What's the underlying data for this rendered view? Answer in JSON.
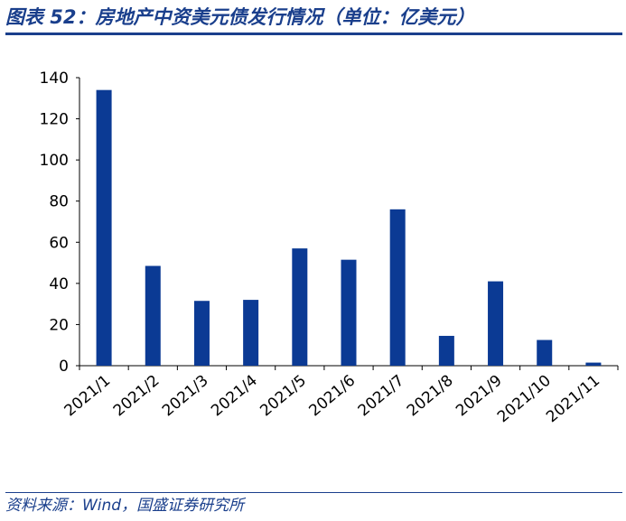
{
  "figure": {
    "title": "图表 52：房地产中资美元债发行情况（单位：亿美元）",
    "source": "资料来源：Wind，国盛证券研究所"
  },
  "chart_data": {
    "type": "bar",
    "categories": [
      "2021/1",
      "2021/2",
      "2021/3",
      "2021/4",
      "2021/5",
      "2021/6",
      "2021/7",
      "2021/8",
      "2021/9",
      "2021/10",
      "2021/11"
    ],
    "values": [
      134,
      48.5,
      31.5,
      32,
      57,
      51.5,
      76,
      14.5,
      41,
      12.5,
      1.5
    ],
    "ylim": [
      0,
      140
    ],
    "yticks": [
      0,
      20,
      40,
      60,
      80,
      100,
      120,
      140
    ],
    "grid": false,
    "bar_color": "#0b3a94",
    "xlabel": "",
    "ylabel": ""
  }
}
